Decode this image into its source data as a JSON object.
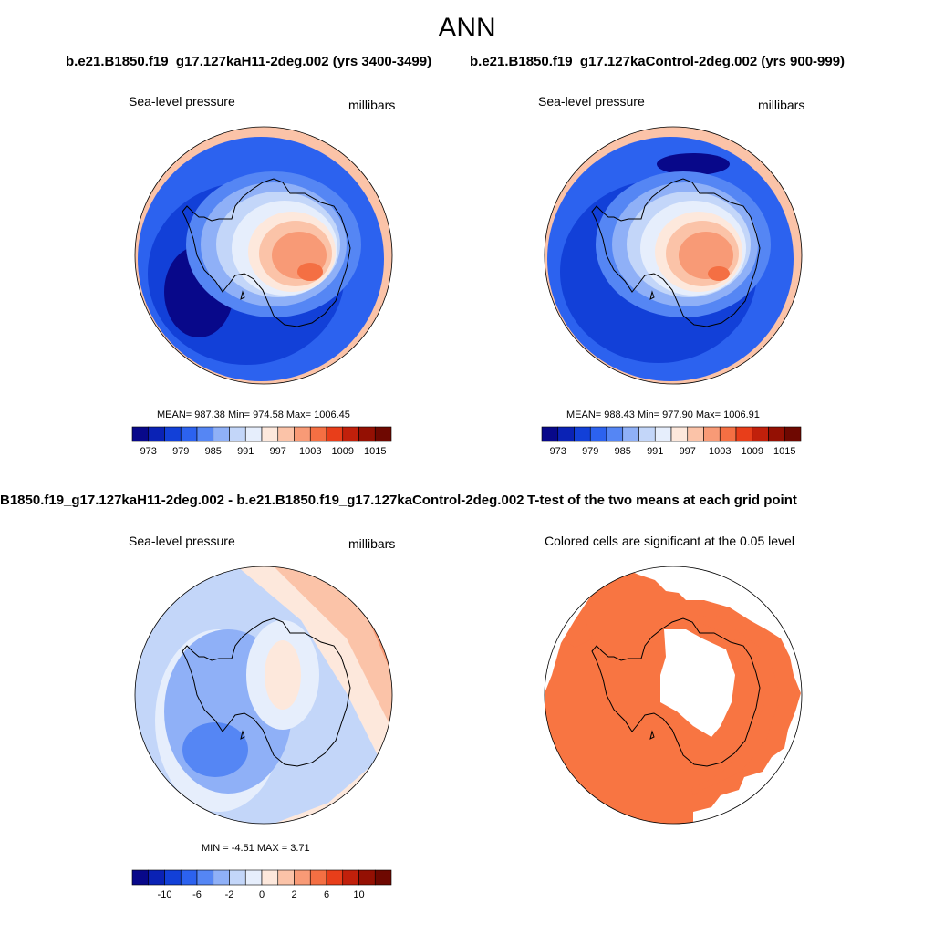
{
  "figure": {
    "main_title": "ANN",
    "run_title_left": "b.e21.B1850.f19_g17.127kaH11-2deg.002 (yrs 3400-3499)",
    "run_title_right": "b.e21.B1850.f19_g17.127kaControl-2deg.002 (yrs 900-999)",
    "diff_title": "B1850.f19_g17.127kaH11-2deg.002 - b.e21.B1850.f19_g17.127kaControl-2deg.002",
    "ttest_title": "T-test of the two means at each grid point"
  },
  "chart_data": [
    {
      "type": "heatmap",
      "panel": "top-left",
      "projection": "south-polar-stereographic",
      "title": "Sea-level pressure",
      "units": "millibars",
      "stats": "MEAN= 987.38  Min= 974.58  Max= 1006.45",
      "mean": 987.38,
      "min": 974.58,
      "max": 1006.45,
      "colorbar": {
        "levels": [
          973,
          976,
          979,
          982,
          985,
          988,
          991,
          994,
          997,
          1000,
          1003,
          1006,
          1009,
          1012,
          1015
        ],
        "tick_labels": [
          "973",
          "979",
          "985",
          "991",
          "997",
          "1003",
          "1009",
          "1015"
        ],
        "colors": [
          "#08088a",
          "#0a22b5",
          "#1240d8",
          "#2c62ef",
          "#5586f4",
          "#8fb0f7",
          "#c3d6f9",
          "#e6eefc",
          "#fde8dc",
          "#fbc3a8",
          "#f89a76",
          "#f46f43",
          "#e83e1a",
          "#c1200b",
          "#941003",
          "#6e0801"
        ]
      }
    },
    {
      "type": "heatmap",
      "panel": "top-right",
      "projection": "south-polar-stereographic",
      "title": "Sea-level pressure",
      "units": "millibars",
      "stats": "MEAN= 988.43  Min= 977.90  Max= 1006.91",
      "mean": 988.43,
      "min": 977.9,
      "max": 1006.91,
      "colorbar": {
        "levels": [
          973,
          976,
          979,
          982,
          985,
          988,
          991,
          994,
          997,
          1000,
          1003,
          1006,
          1009,
          1012,
          1015
        ],
        "tick_labels": [
          "973",
          "979",
          "985",
          "991",
          "997",
          "1003",
          "1009",
          "1015"
        ],
        "colors": [
          "#08088a",
          "#0a22b5",
          "#1240d8",
          "#2c62ef",
          "#5586f4",
          "#8fb0f7",
          "#c3d6f9",
          "#e6eefc",
          "#fde8dc",
          "#fbc3a8",
          "#f89a76",
          "#f46f43",
          "#e83e1a",
          "#c1200b",
          "#941003",
          "#6e0801"
        ]
      }
    },
    {
      "type": "heatmap",
      "panel": "bottom-left",
      "projection": "south-polar-stereographic",
      "title": "Sea-level pressure",
      "units": "millibars",
      "stats": "MIN =  -4.51 MAX =   3.71",
      "min": -4.51,
      "max": 3.71,
      "colorbar": {
        "levels": [
          -12,
          -10,
          -8,
          -6,
          -4,
          -2,
          -1,
          0,
          1,
          2,
          4,
          6,
          8,
          10,
          12
        ],
        "tick_labels": [
          "-10",
          "-6",
          "-2",
          "0",
          "2",
          "6",
          "10"
        ],
        "colors": [
          "#08088a",
          "#0a22b5",
          "#1240d8",
          "#2c62ef",
          "#5586f4",
          "#8fb0f7",
          "#c3d6f9",
          "#e6eefc",
          "#fde8dc",
          "#fbc3a8",
          "#f89a76",
          "#f46f43",
          "#e83e1a",
          "#c1200b",
          "#941003",
          "#6e0801"
        ]
      }
    },
    {
      "type": "heatmap",
      "panel": "bottom-right",
      "projection": "south-polar-stereographic",
      "title": "Colored cells are significant at the 0.05 level",
      "significance_level": 0.05,
      "fill_color": "#f87542"
    }
  ]
}
